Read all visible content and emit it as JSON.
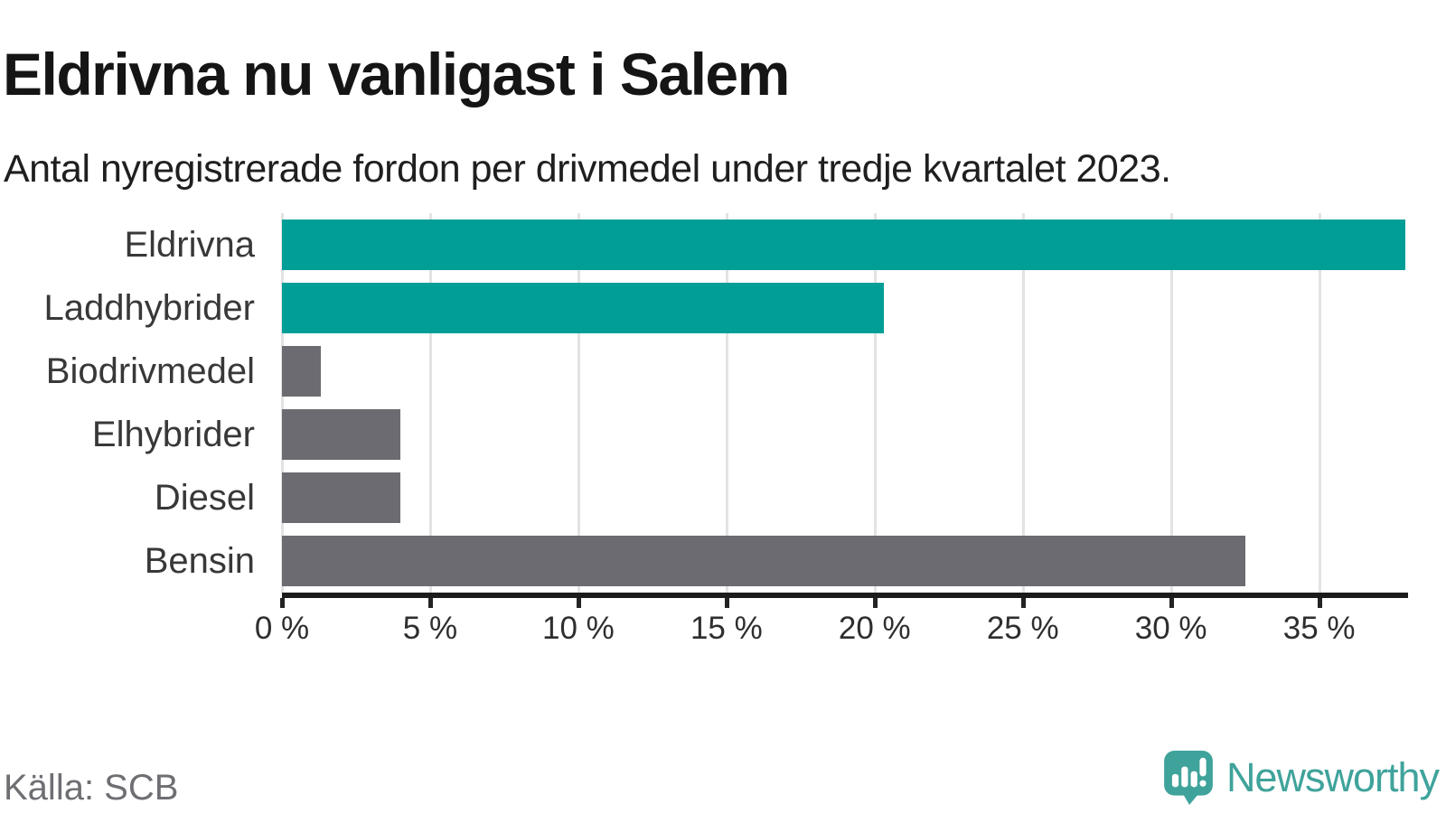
{
  "chart_data": {
    "type": "bar",
    "orientation": "horizontal",
    "title": "Eldrivna nu vanligast i Salem",
    "subtitle": "Antal nyregistrerade fordon per drivmedel under tredje kvartalet 2023.",
    "categories": [
      "Eldrivna",
      "Laddhybrider",
      "Biodrivmedel",
      "Elhybrider",
      "Diesel",
      "Bensin"
    ],
    "values": [
      37.9,
      20.3,
      1.3,
      4.0,
      4.0,
      32.5
    ],
    "unit": "%",
    "xlabel": "",
    "ylabel": "",
    "xlim": [
      0,
      38
    ],
    "x_ticks": [
      0,
      5,
      10,
      15,
      20,
      25,
      30,
      35
    ],
    "x_tick_labels": [
      "0 %",
      "5 %",
      "10 %",
      "15 %",
      "20 %",
      "25 %",
      "30 %",
      "35 %"
    ],
    "bar_colors": [
      "#009E96",
      "#009E96",
      "#6B6B71",
      "#6B6B71",
      "#6B6B71",
      "#6B6B71"
    ],
    "grid": "vertical",
    "legend": "none"
  },
  "colors": {
    "bar_teal": "#009E96",
    "bar_gray": "#6B6B71",
    "gridline": "#E3E3E3",
    "axis_line": "#1B1B1B",
    "logo_teal": "#3FA39B",
    "source_text": "#6E6E73"
  },
  "footer": {
    "source": "Källa: SCB",
    "brand": "Newsworthy"
  }
}
